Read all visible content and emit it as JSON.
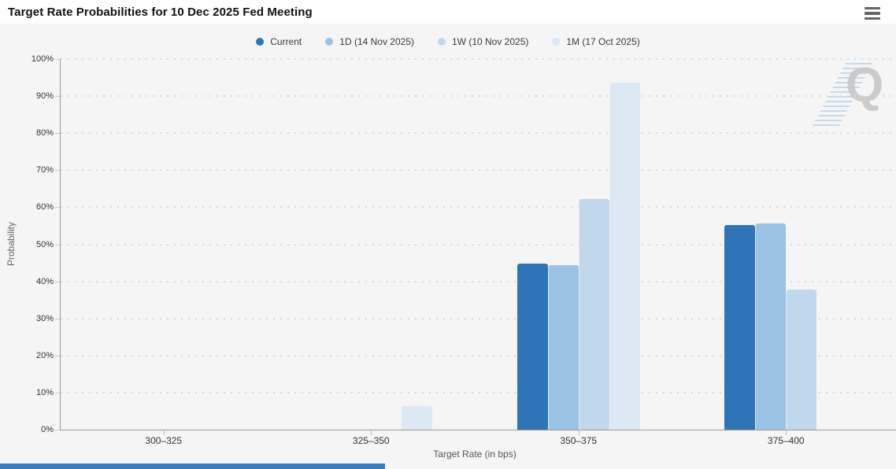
{
  "header": {
    "menu_icon": "hamburger-icon"
  },
  "watermark": {
    "letter": "Q"
  },
  "page": {
    "panel_bg": "#f5f5f5",
    "bottom_bar_color": "#3c79bd"
  },
  "chart_data": {
    "type": "bar",
    "title": "Target Rate Probabilities for 10 Dec 2025 Fed Meeting",
    "categories": [
      "300–325",
      "325–350",
      "350–375",
      "375–400"
    ],
    "series": [
      {
        "name": "Current",
        "color": "#2f74b6",
        "values": [
          0,
          0,
          44.9,
          55.2
        ]
      },
      {
        "name": "1D (14 Nov 2025)",
        "color": "#9cc2e4",
        "values": [
          0,
          0,
          44.3,
          55.7
        ]
      },
      {
        "name": "1W (10 Nov 2025)",
        "color": "#c0d7ec",
        "values": [
          0,
          0,
          62.3,
          37.7
        ]
      },
      {
        "name": "1M (17 Oct 2025)",
        "color": "#dce8f4",
        "values": [
          0,
          6.3,
          93.7,
          0
        ]
      }
    ],
    "xlabel": "Target Rate (in bps)",
    "ylabel": "Probability",
    "ylim": [
      0,
      100
    ],
    "yticks": [
      "0%",
      "10%",
      "20%",
      "30%",
      "40%",
      "50%",
      "60%",
      "70%",
      "80%",
      "90%",
      "100%"
    ],
    "grid": "dotted-horizontal",
    "legend_position": "top-center"
  }
}
